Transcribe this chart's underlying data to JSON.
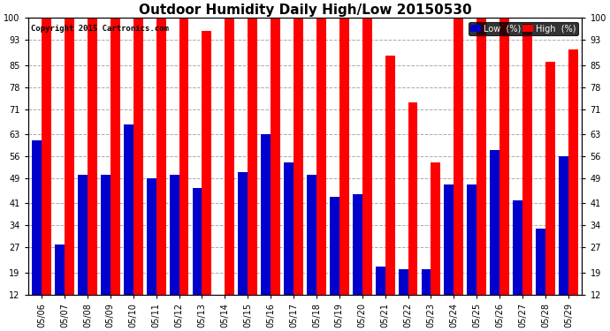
{
  "title": "Outdoor Humidity Daily High/Low 20150530",
  "copyright": "Copyright 2015 Cartronics.com",
  "dates": [
    "05/06",
    "05/07",
    "05/08",
    "05/09",
    "05/10",
    "05/11",
    "05/12",
    "05/13",
    "05/14",
    "05/15",
    "05/16",
    "05/17",
    "05/18",
    "05/19",
    "05/20",
    "05/21",
    "05/22",
    "05/23",
    "05/24",
    "05/25",
    "05/26",
    "05/27",
    "05/28",
    "05/29"
  ],
  "high": [
    100,
    100,
    100,
    100,
    100,
    100,
    100,
    96,
    100,
    100,
    100,
    100,
    100,
    100,
    100,
    88,
    73,
    54,
    100,
    100,
    100,
    98,
    86,
    90
  ],
  "low": [
    61,
    28,
    50,
    50,
    66,
    49,
    50,
    46,
    12,
    51,
    63,
    54,
    50,
    43,
    44,
    21,
    20,
    20,
    47,
    47,
    58,
    42,
    33,
    56
  ],
  "ylim_min": 12,
  "ylim_max": 100,
  "yticks": [
    12,
    19,
    27,
    34,
    41,
    49,
    56,
    63,
    71,
    78,
    85,
    93,
    100
  ],
  "bar_width": 0.42,
  "high_color": "#ff0000",
  "low_color": "#0000cc",
  "bg_color": "#ffffff",
  "grid_color": "#aaaaaa",
  "title_fontsize": 11,
  "tick_fontsize": 7,
  "legend_low_label": "Low  (%)",
  "legend_high_label": "High  (%)"
}
